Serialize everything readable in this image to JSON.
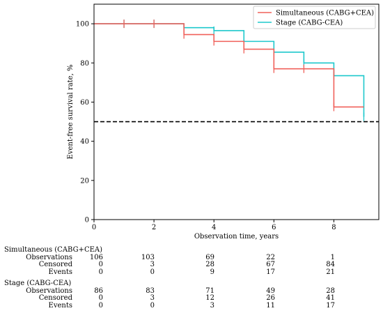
{
  "chart_data": {
    "type": "line",
    "step": true,
    "ylabel": "Event-free survival rate, %",
    "xlabel": "Observation time, years",
    "xlim": [
      0,
      9.5
    ],
    "ylim": [
      0,
      110
    ],
    "xticks": [
      0,
      2,
      4,
      6,
      8
    ],
    "yticks": [
      0,
      20,
      40,
      60,
      80,
      100
    ],
    "grid": false,
    "legend_position": "top-right",
    "reference_line": {
      "y": 50,
      "style": "dashed",
      "color": "#000000"
    },
    "series": [
      {
        "name": "Simultaneous (CABG+CEA)",
        "color": "#f0605a",
        "x": [
          0,
          3,
          4,
          5,
          6,
          8,
          9
        ],
        "y": [
          100,
          94.5,
          91,
          87,
          77,
          57.5,
          57.5
        ],
        "censor_x": [
          1,
          2,
          3,
          4,
          5,
          6,
          7,
          8
        ],
        "censor_y": [
          100,
          100,
          94.5,
          91,
          87,
          77,
          77,
          57.5
        ]
      },
      {
        "name": "Stage (CABG-CEA)",
        "color": "#1ec8cc",
        "x": [
          0,
          3,
          4,
          5,
          6,
          7,
          8,
          9
        ],
        "y": [
          100,
          98,
          96.5,
          91,
          85.5,
          80,
          73.5,
          52.5
        ],
        "censor_x": [
          1,
          2,
          3,
          4,
          6,
          7,
          8,
          9
        ],
        "censor_y": [
          100,
          100,
          98,
          96.5,
          85.5,
          80,
          73.5,
          52.5
        ]
      }
    ]
  },
  "risk_table": [
    {
      "group": "Simultaneous (CABG+CEA)",
      "rows": [
        {
          "label": "Observations",
          "values": [
            "106",
            "103",
            "69",
            "22",
            "1"
          ]
        },
        {
          "label": "Censored",
          "values": [
            "0",
            "3",
            "28",
            "67",
            "84"
          ]
        },
        {
          "label": "Events",
          "values": [
            "0",
            "0",
            "9",
            "17",
            "21"
          ]
        }
      ]
    },
    {
      "group": "Stage (CABG-CEA)",
      "rows": [
        {
          "label": "Observations",
          "values": [
            "86",
            "83",
            "71",
            "49",
            "28"
          ]
        },
        {
          "label": "Censored",
          "values": [
            "0",
            "3",
            "12",
            "26",
            "41"
          ]
        },
        {
          "label": "Events",
          "values": [
            "0",
            "0",
            "3",
            "11",
            "17"
          ]
        }
      ]
    }
  ]
}
